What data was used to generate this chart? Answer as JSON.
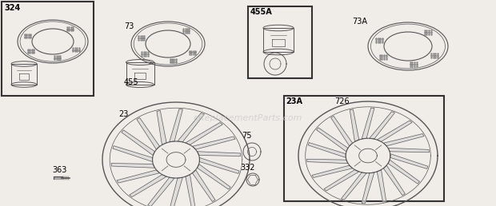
{
  "bg_color": "#f0ede8",
  "line_color": "#555555",
  "watermark": "eReplacementParts.com",
  "watermark_color": "#c8c8c8",
  "label_fontsize": 7,
  "label_bold_ids": [
    "324",
    "455A",
    "23A"
  ]
}
